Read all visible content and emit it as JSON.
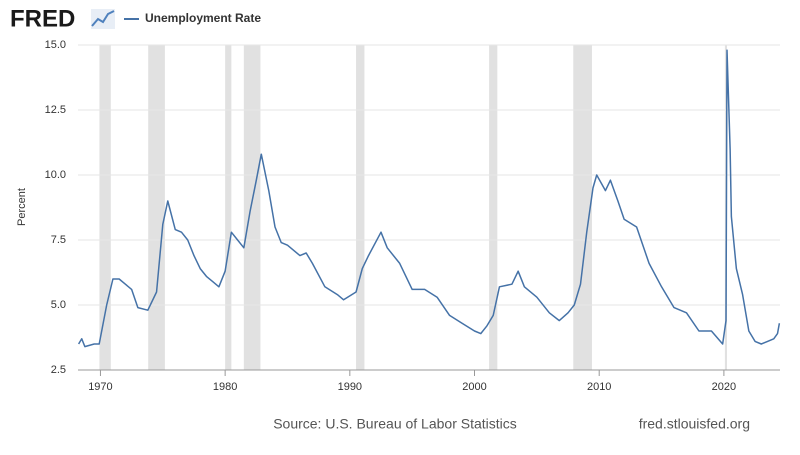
{
  "chart_data": {
    "type": "line",
    "logo": "FRED",
    "y_label": "Percent",
    "source": "Source: U.S. Bureau of Labor Statistics",
    "url": "fred.stlouisfed.org",
    "grid": true,
    "recession_color": "#e1e1e1",
    "recessions": [
      [
        1969.92,
        1970.83
      ],
      [
        1973.83,
        1975.17
      ],
      [
        1980.0,
        1980.5
      ],
      [
        1981.5,
        1982.83
      ],
      [
        1990.5,
        1991.17
      ],
      [
        2001.17,
        2001.83
      ],
      [
        2007.92,
        2009.42
      ],
      [
        2020.08,
        2020.25
      ]
    ],
    "xlim": [
      1968.2,
      2024.5
    ],
    "xticks": [
      1970,
      1980,
      1990,
      2000,
      2010,
      2020
    ],
    "ylim": [
      2.5,
      15
    ],
    "yticks": [
      2.5,
      {
        "value": 5,
        "label": "5.0"
      },
      7.5,
      {
        "value": 10,
        "label": "10.0"
      },
      12.5,
      {
        "value": 15,
        "label": "15.0"
      }
    ],
    "x": [
      1968.25,
      1968.5,
      1968.75,
      1969.5,
      1969.9,
      1970.5,
      1971.0,
      1971.5,
      1972.0,
      1972.5,
      1973.0,
      1973.8,
      1974.5,
      1975.0,
      1975.4,
      1976.0,
      1976.5,
      1977.0,
      1977.5,
      1978.0,
      1978.5,
      1979.0,
      1979.5,
      1980.0,
      1980.5,
      1981.0,
      1981.5,
      1982.0,
      1982.5,
      1982.9,
      1983.5,
      1984.0,
      1984.5,
      1985.0,
      1986.0,
      1986.5,
      1987.0,
      1988.0,
      1989.0,
      1989.5,
      1990.5,
      1991.0,
      1991.5,
      1992.5,
      1993.0,
      1994.0,
      1995.0,
      1996.0,
      1997.0,
      1998.0,
      1999.0,
      2000.0,
      2000.5,
      2001.0,
      2001.5,
      2002.0,
      2003.0,
      2003.5,
      2004.0,
      2005.0,
      2006.0,
      2006.8,
      2007.5,
      2008.0,
      2008.5,
      2009.0,
      2009.5,
      2009.8,
      2010.5,
      2010.9,
      2011.5,
      2012.0,
      2013.0,
      2014.0,
      2015.0,
      2016.0,
      2017.0,
      2018.0,
      2019.0,
      2019.9,
      2020.17,
      2020.25,
      2020.5,
      2020.6,
      2021.0,
      2021.5,
      2022.0,
      2022.5,
      2023.0,
      2023.5,
      2024.0,
      2024.3,
      2024.45
    ],
    "series": [
      {
        "name": "Unemployment Rate",
        "color": "#4572a7",
        "values": [
          3.5,
          3.7,
          3.4,
          3.5,
          3.5,
          5.0,
          6.0,
          6.0,
          5.8,
          5.6,
          4.9,
          4.8,
          5.5,
          8.1,
          9.0,
          7.9,
          7.8,
          7.5,
          6.9,
          6.4,
          6.1,
          5.9,
          5.7,
          6.3,
          7.8,
          7.5,
          7.2,
          8.6,
          9.8,
          10.8,
          9.4,
          8.0,
          7.4,
          7.3,
          6.9,
          7.0,
          6.6,
          5.7,
          5.4,
          5.2,
          5.5,
          6.4,
          6.9,
          7.8,
          7.2,
          6.6,
          5.6,
          5.6,
          5.3,
          4.6,
          4.3,
          4.0,
          3.9,
          4.2,
          4.6,
          5.7,
          5.8,
          6.3,
          5.7,
          5.3,
          4.7,
          4.4,
          4.7,
          5.0,
          5.8,
          7.8,
          9.5,
          10.0,
          9.4,
          9.8,
          9.0,
          8.3,
          8.0,
          6.6,
          5.7,
          4.9,
          4.7,
          4.0,
          4.0,
          3.5,
          4.4,
          14.8,
          11.0,
          8.4,
          6.4,
          5.4,
          4.0,
          3.6,
          3.5,
          3.6,
          3.7,
          3.9,
          4.3
        ]
      }
    ]
  }
}
